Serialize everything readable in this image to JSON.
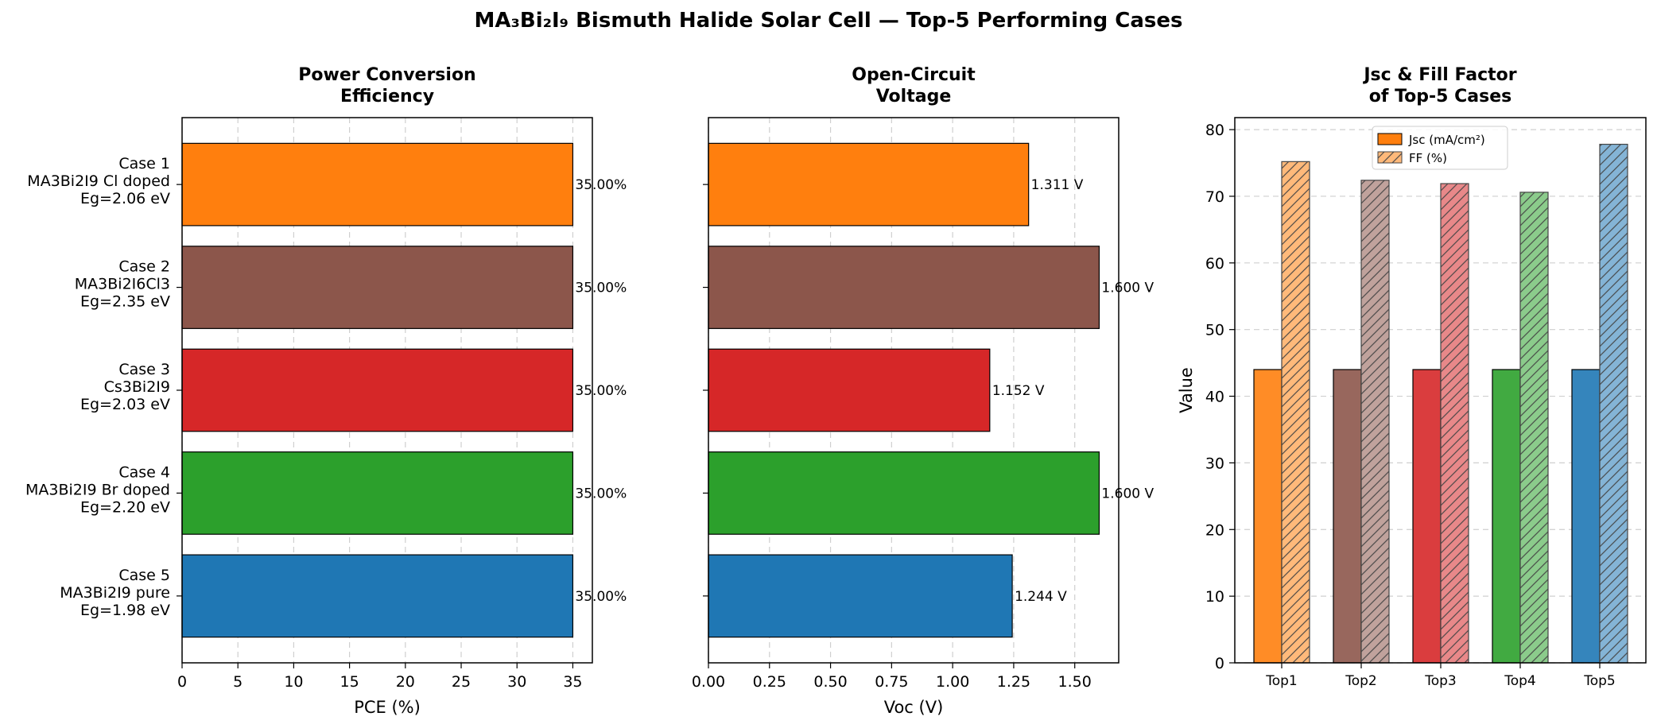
{
  "figure": {
    "suptitle": "MA₃Bi₂I₉ Bismuth Halide Solar Cell — Top-5 Performing Cases"
  },
  "chart_data": [
    {
      "type": "bar",
      "orientation": "horizontal",
      "title_lines": [
        "Power Conversion",
        "Efficiency"
      ],
      "xlabel": "PCE (%)",
      "xlim": [
        0,
        36.75
      ],
      "xticks": [
        0,
        5,
        10,
        15,
        20,
        25,
        30,
        35
      ],
      "grid": "x dashed",
      "categories": [
        [
          "Case 1",
          "MA3Bi2I9 Cl doped",
          "Eg=2.06 eV"
        ],
        [
          "Case 2",
          "MA3Bi2I6Cl3",
          "Eg=2.35 eV"
        ],
        [
          "Case 3",
          "Cs3Bi2I9",
          "Eg=2.03 eV"
        ],
        [
          "Case 4",
          "MA3Bi2I9 Br doped",
          "Eg=2.20 eV"
        ],
        [
          "Case 5",
          "MA3Bi2I9 pure",
          "Eg=1.98 eV"
        ]
      ],
      "values": [
        35.0,
        35.0,
        35.0,
        35.0,
        35.0
      ],
      "value_labels": [
        "35.00%",
        "35.00%",
        "35.00%",
        "35.00%",
        "35.00%"
      ],
      "colors": [
        "#ff7f0e",
        "#8c564b",
        "#d62728",
        "#2ca02c",
        "#1f77b4"
      ]
    },
    {
      "type": "bar",
      "orientation": "horizontal",
      "title_lines": [
        "Open-Circuit",
        "Voltage"
      ],
      "xlabel": "Voc (V)",
      "xlim": [
        0,
        1.68
      ],
      "xticks": [
        "0.00",
        "0.25",
        "0.50",
        "0.75",
        "1.00",
        "1.25",
        "1.50"
      ],
      "grid": "x dashed",
      "values": [
        1.311,
        1.6,
        1.152,
        1.6,
        1.244
      ],
      "value_labels": [
        "1.311 V",
        "1.600 V",
        "1.152 V",
        "1.600 V",
        "1.244 V"
      ],
      "colors": [
        "#ff7f0e",
        "#8c564b",
        "#d62728",
        "#2ca02c",
        "#1f77b4"
      ]
    },
    {
      "type": "bar",
      "orientation": "vertical-grouped",
      "title_lines": [
        "Jsc & Fill Factor",
        "of Top-5 Cases"
      ],
      "ylabel": "Value",
      "ylim": [
        0,
        81.8
      ],
      "yticks": [
        0,
        10,
        20,
        30,
        40,
        50,
        60,
        70,
        80
      ],
      "grid": "y dashed",
      "legend": "top-center",
      "categories": [
        "Top1",
        "Top2",
        "Top3",
        "Top4",
        "Top5"
      ],
      "colors": [
        "#ff7f0e",
        "#8c564b",
        "#d62728",
        "#2ca02c",
        "#1f77b4"
      ],
      "series": [
        {
          "name": "Jsc (mA/cm²)",
          "values": [
            44.0,
            44.0,
            44.0,
            44.0,
            44.0
          ],
          "style": "solid"
        },
        {
          "name": "FF (%)",
          "values": [
            75.2,
            72.4,
            71.9,
            70.6,
            77.8
          ],
          "style": "hatched-light"
        }
      ]
    }
  ]
}
